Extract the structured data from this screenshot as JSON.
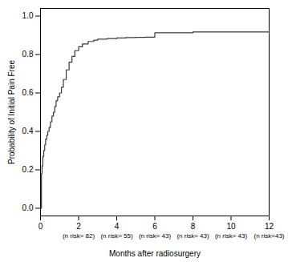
{
  "chart_data": {
    "type": "step",
    "x": [
      0,
      0.05,
      0.08,
      0.12,
      0.17,
      0.22,
      0.27,
      0.33,
      0.38,
      0.45,
      0.52,
      0.6,
      0.68,
      0.75,
      0.82,
      0.9,
      1.0,
      1.1,
      1.2,
      1.35,
      1.5,
      1.65,
      1.8,
      2.0,
      2.2,
      2.5,
      2.8,
      3.0,
      3.5,
      4.0,
      4.5,
      5.0,
      5.5,
      6.0,
      6.5,
      7.0,
      8.0,
      10.0,
      12.0
    ],
    "values": [
      0.0,
      0.18,
      0.22,
      0.27,
      0.3,
      0.33,
      0.36,
      0.38,
      0.4,
      0.42,
      0.45,
      0.48,
      0.5,
      0.53,
      0.56,
      0.58,
      0.6,
      0.63,
      0.67,
      0.72,
      0.76,
      0.79,
      0.82,
      0.84,
      0.855,
      0.868,
      0.875,
      0.88,
      0.883,
      0.886,
      0.888,
      0.889,
      0.89,
      0.913,
      0.913,
      0.913,
      0.9175,
      0.9175,
      0.9175
    ],
    "color": "#3a3a3a",
    "xlabel": "Months after radiosurgery",
    "ylabel": "Probability of Initial Pain Free",
    "xlim": [
      0,
      12
    ],
    "ylim": [
      -0.04,
      1.04
    ],
    "xticks": [
      0,
      2,
      4,
      6,
      8,
      10,
      12
    ],
    "yticks": [
      {
        "value": 0.0,
        "label": "0.0"
      },
      0.2,
      0.4,
      0.6,
      0.8,
      {
        "value": 1.0,
        "label": "1.0"
      }
    ],
    "grid": false,
    "annotations": [
      {
        "x": 2,
        "text": "(n risk= 82)"
      },
      {
        "x": 4,
        "text": "(n risk= 55)"
      },
      {
        "x": 6,
        "text": "(n risk= 43)"
      },
      {
        "x": 8,
        "text": "(n risk= 43)"
      },
      {
        "x": 10,
        "text": "(n risk= 43)"
      },
      {
        "x": 12,
        "text": "(n risk=43)"
      }
    ]
  }
}
